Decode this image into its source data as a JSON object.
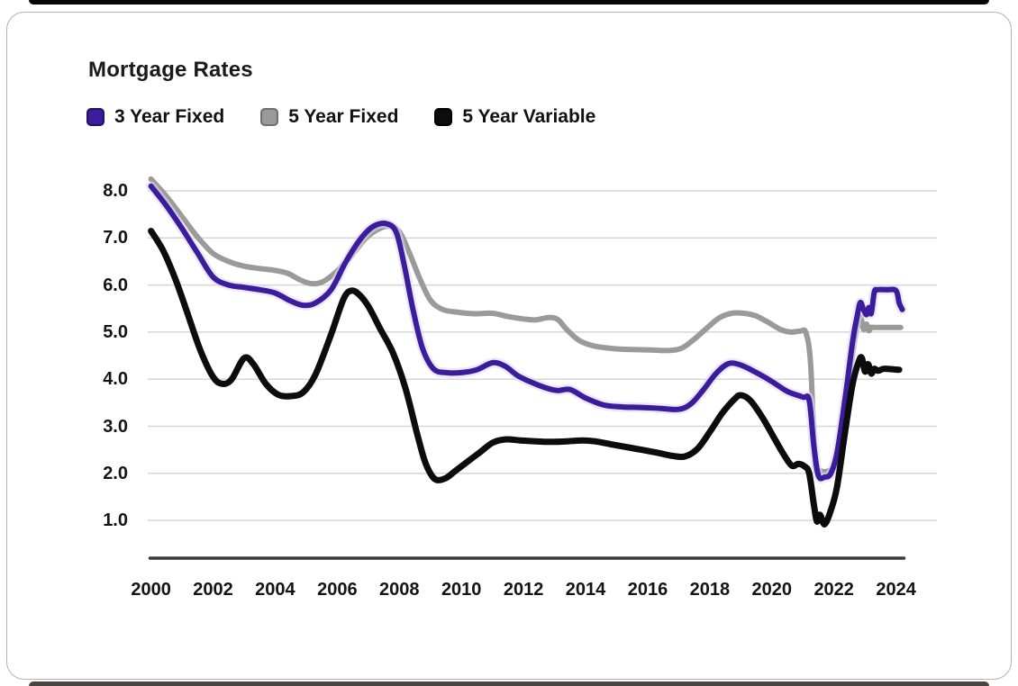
{
  "page": {
    "top_bar_color": "#060606",
    "bottom_bar_color": "#4a4540",
    "card_border_color": "#b6b1ae",
    "background_color": "#ffffff"
  },
  "chart": {
    "title": "Mortgage Rates",
    "legend": [
      {
        "label": "3 Year Fixed",
        "color": "#3a1c9c",
        "border": "#26115f"
      },
      {
        "label": "5 Year Fixed",
        "color": "#9a9a9a",
        "border": "#6e6e6e"
      },
      {
        "label": "5 Year Variable",
        "color": "#0c0c0c",
        "border": "#000000"
      }
    ]
  },
  "chart_data": {
    "type": "line",
    "title": "Mortgage Rates",
    "xlabel": "",
    "ylabel": "",
    "xlim": [
      2000,
      2024.3
    ],
    "ylim": [
      0.2,
      8.6
    ],
    "grid": "horizontal",
    "legend_position": "top-left",
    "x_ticks": [
      2000,
      2002,
      2004,
      2006,
      2008,
      2010,
      2012,
      2014,
      2016,
      2018,
      2020,
      2022,
      2024
    ],
    "x_tick_labels": [
      "2000",
      "2002",
      "2004",
      "2006",
      "2008",
      "2010",
      "2012",
      "2014",
      "2016",
      "2018",
      "2020",
      "2022",
      "2024"
    ],
    "y_ticks": [
      1.0,
      2.0,
      3.0,
      4.0,
      5.0,
      6.0,
      7.0,
      8.0
    ],
    "y_tick_labels": [
      "1.0",
      "2.0",
      "3.0",
      "4.0",
      "5.0",
      "6.0",
      "7.0",
      "8.0"
    ],
    "gridline_color": "#d6d6d6",
    "axis_color": "#3b3b3b",
    "series": [
      {
        "name": "3 Year Fixed",
        "color": "#3a1c9c",
        "width": 6,
        "z": 2,
        "glow": "#e2d9f3",
        "x": [
          2000.0,
          2000.5,
          2001.0,
          2001.5,
          2002.0,
          2002.5,
          2003.0,
          2003.5,
          2004.0,
          2004.5,
          2004.9,
          2005.3,
          2005.8,
          2006.3,
          2006.8,
          2007.2,
          2007.6,
          2007.9,
          2008.15,
          2008.45,
          2008.75,
          2009.1,
          2009.5,
          2010.0,
          2010.5,
          2011.0,
          2011.4,
          2011.8,
          2012.2,
          2012.7,
          2013.1,
          2013.5,
          2014.0,
          2014.6,
          2015.2,
          2015.8,
          2016.4,
          2017.0,
          2017.4,
          2017.8,
          2018.2,
          2018.6,
          2019.0,
          2019.5,
          2020.0,
          2020.5,
          2021.0,
          2021.2,
          2021.35,
          2021.5,
          2021.7,
          2021.9,
          2022.1,
          2022.35,
          2022.6,
          2022.75,
          2022.85,
          2022.95,
          2023.05,
          2023.12,
          2023.2,
          2023.3,
          2023.4,
          2023.7,
          2024.0,
          2024.1,
          2024.2
        ],
        "values": [
          8.1,
          7.68,
          7.2,
          6.68,
          6.17,
          6.0,
          5.95,
          5.9,
          5.83,
          5.66,
          5.57,
          5.62,
          5.9,
          6.52,
          7.02,
          7.26,
          7.3,
          7.12,
          6.45,
          5.45,
          4.65,
          4.22,
          4.14,
          4.14,
          4.2,
          4.35,
          4.28,
          4.08,
          3.95,
          3.82,
          3.76,
          3.78,
          3.6,
          3.45,
          3.41,
          3.4,
          3.38,
          3.36,
          3.48,
          3.78,
          4.12,
          4.33,
          4.3,
          4.14,
          3.95,
          3.74,
          3.62,
          3.55,
          2.6,
          1.95,
          1.92,
          2.0,
          2.45,
          3.55,
          4.8,
          5.35,
          5.63,
          5.48,
          5.37,
          5.52,
          5.4,
          5.85,
          5.9,
          5.9,
          5.88,
          5.62,
          5.48
        ]
      },
      {
        "name": "5 Year Fixed",
        "color": "#9a9a9a",
        "width": 6,
        "z": 1,
        "glow": "",
        "x": [
          2000.0,
          2000.5,
          2001.0,
          2001.5,
          2002.0,
          2002.5,
          2003.0,
          2003.5,
          2004.0,
          2004.4,
          2004.8,
          2005.15,
          2005.5,
          2005.9,
          2006.4,
          2006.9,
          2007.3,
          2007.7,
          2008.0,
          2008.3,
          2008.65,
          2009.0,
          2009.4,
          2009.9,
          2010.4,
          2011.0,
          2011.5,
          2012.0,
          2012.4,
          2012.8,
          2013.1,
          2013.4,
          2013.8,
          2014.3,
          2014.9,
          2015.5,
          2016.1,
          2016.7,
          2017.1,
          2017.5,
          2017.9,
          2018.3,
          2018.7,
          2019.1,
          2019.5,
          2019.9,
          2020.3,
          2020.6,
          2020.9,
          2021.1,
          2021.25,
          2021.4,
          2021.6,
          2021.8,
          2022.0,
          2022.2,
          2022.45,
          2022.7,
          2022.85,
          2022.95,
          2023.05,
          2023.12,
          2023.2,
          2023.3,
          2023.5,
          2023.8,
          2024.15
        ],
        "values": [
          8.25,
          7.88,
          7.45,
          7.02,
          6.67,
          6.5,
          6.4,
          6.35,
          6.31,
          6.25,
          6.11,
          6.03,
          6.06,
          6.24,
          6.58,
          6.98,
          7.18,
          7.25,
          7.13,
          6.72,
          6.15,
          5.68,
          5.48,
          5.42,
          5.39,
          5.4,
          5.33,
          5.28,
          5.26,
          5.31,
          5.27,
          5.05,
          4.82,
          4.7,
          4.65,
          4.63,
          4.62,
          4.61,
          4.66,
          4.85,
          5.08,
          5.3,
          5.4,
          5.4,
          5.34,
          5.2,
          5.05,
          5.0,
          5.02,
          4.98,
          4.3,
          2.2,
          2.05,
          2.05,
          2.15,
          2.65,
          3.9,
          4.95,
          5.32,
          5.06,
          5.17,
          5.03,
          5.1,
          5.1,
          5.1,
          5.1,
          5.1
        ]
      },
      {
        "name": "5 Year Variable",
        "color": "#0c0c0c",
        "width": 7,
        "z": 3,
        "glow": "",
        "x": [
          2000.0,
          2000.4,
          2000.8,
          2001.2,
          2001.6,
          2002.0,
          2002.3,
          2002.6,
          2003.0,
          2003.3,
          2003.7,
          2004.1,
          2004.5,
          2004.9,
          2005.3,
          2005.8,
          2006.2,
          2006.45,
          2006.7,
          2007.0,
          2007.4,
          2007.8,
          2008.2,
          2008.55,
          2008.8,
          2009.0,
          2009.2,
          2009.5,
          2009.8,
          2010.2,
          2010.6,
          2011.0,
          2011.4,
          2011.9,
          2012.4,
          2012.9,
          2013.4,
          2013.9,
          2014.3,
          2014.8,
          2015.3,
          2015.8,
          2016.3,
          2016.8,
          2017.2,
          2017.6,
          2018.0,
          2018.4,
          2018.8,
          2019.0,
          2019.3,
          2019.7,
          2020.1,
          2020.4,
          2020.65,
          2020.85,
          2021.05,
          2021.2,
          2021.35,
          2021.45,
          2021.55,
          2021.7,
          2021.9,
          2022.1,
          2022.35,
          2022.6,
          2022.8,
          2022.9,
          2023.0,
          2023.1,
          2023.2,
          2023.3,
          2023.42,
          2023.6,
          2023.9,
          2024.1
        ],
        "values": [
          7.15,
          6.72,
          6.1,
          5.35,
          4.6,
          4.05,
          3.9,
          4.0,
          4.45,
          4.32,
          3.9,
          3.67,
          3.64,
          3.72,
          4.1,
          4.95,
          5.7,
          5.88,
          5.8,
          5.55,
          5.05,
          4.55,
          3.8,
          2.9,
          2.3,
          2.0,
          1.86,
          1.9,
          2.05,
          2.25,
          2.45,
          2.65,
          2.72,
          2.7,
          2.68,
          2.67,
          2.68,
          2.7,
          2.68,
          2.62,
          2.56,
          2.5,
          2.44,
          2.37,
          2.36,
          2.52,
          2.88,
          3.28,
          3.58,
          3.66,
          3.55,
          3.18,
          2.72,
          2.38,
          2.16,
          2.2,
          2.15,
          2.0,
          1.35,
          0.98,
          1.12,
          0.92,
          1.22,
          1.72,
          2.85,
          3.9,
          4.38,
          4.45,
          4.16,
          4.32,
          4.12,
          4.22,
          4.18,
          4.22,
          4.21,
          4.2
        ]
      }
    ]
  }
}
